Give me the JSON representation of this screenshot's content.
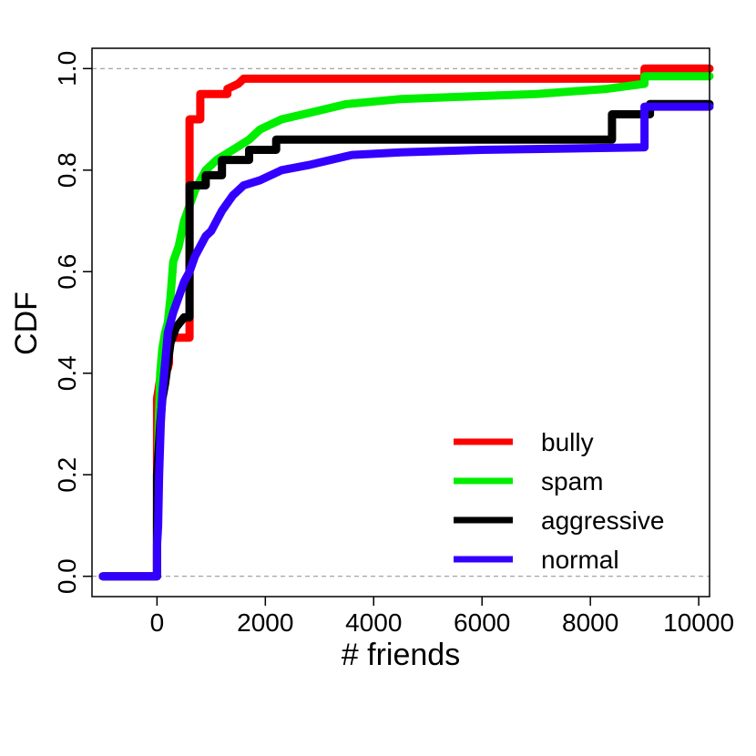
{
  "chart_data": {
    "type": "line",
    "xlabel": "# friends",
    "ylabel": "CDF",
    "xlim": [
      -1200,
      10200
    ],
    "ylim": [
      -0.04,
      1.04
    ],
    "x_ticks": [
      0,
      2000,
      4000,
      6000,
      8000,
      10000
    ],
    "x_tick_labels": [
      "0",
      "2000",
      "4000",
      "6000",
      "8000",
      "10000"
    ],
    "y_ticks": [
      0.0,
      0.2,
      0.4,
      0.6,
      0.8,
      1.0
    ],
    "y_tick_labels": [
      "0.0",
      "0.2",
      "0.4",
      "0.6",
      "0.8",
      "1.0"
    ],
    "reference_lines_y": [
      0.0,
      1.0
    ],
    "legend_position": "bottom-right",
    "series": [
      {
        "name": "bully",
        "color": "#ff0000",
        "points": [
          [
            -1000,
            0
          ],
          [
            0,
            0
          ],
          [
            0,
            0.35
          ],
          [
            30,
            0.37
          ],
          [
            60,
            0.39
          ],
          [
            100,
            0.4
          ],
          [
            150,
            0.41
          ],
          [
            200,
            0.41
          ],
          [
            220,
            0.42
          ],
          [
            220,
            0.47
          ],
          [
            600,
            0.47
          ],
          [
            600,
            0.9
          ],
          [
            800,
            0.9
          ],
          [
            800,
            0.95
          ],
          [
            1300,
            0.95
          ],
          [
            1300,
            0.96
          ],
          [
            1500,
            0.97
          ],
          [
            1600,
            0.98
          ],
          [
            9000,
            0.98
          ],
          [
            9000,
            1.0
          ],
          [
            10200,
            1.0
          ]
        ]
      },
      {
        "name": "spam",
        "color": "#00ee00",
        "points": [
          [
            -1000,
            0
          ],
          [
            0,
            0
          ],
          [
            0,
            0.12
          ],
          [
            30,
            0.3
          ],
          [
            60,
            0.4
          ],
          [
            100,
            0.45
          ],
          [
            150,
            0.48
          ],
          [
            200,
            0.5
          ],
          [
            250,
            0.55
          ],
          [
            300,
            0.62
          ],
          [
            400,
            0.65
          ],
          [
            500,
            0.7
          ],
          [
            700,
            0.76
          ],
          [
            900,
            0.8
          ],
          [
            1100,
            0.82
          ],
          [
            1400,
            0.84
          ],
          [
            1700,
            0.86
          ],
          [
            1900,
            0.88
          ],
          [
            2100,
            0.89
          ],
          [
            2300,
            0.9
          ],
          [
            2700,
            0.91
          ],
          [
            3100,
            0.92
          ],
          [
            3500,
            0.93
          ],
          [
            4500,
            0.94
          ],
          [
            7000,
            0.95
          ],
          [
            8300,
            0.96
          ],
          [
            9000,
            0.97
          ],
          [
            9000,
            0.985
          ],
          [
            10200,
            0.985
          ]
        ]
      },
      {
        "name": "aggressive",
        "color": "#000000",
        "points": [
          [
            -1000,
            0
          ],
          [
            0,
            0
          ],
          [
            0,
            0.2
          ],
          [
            30,
            0.25
          ],
          [
            60,
            0.3
          ],
          [
            100,
            0.35
          ],
          [
            150,
            0.38
          ],
          [
            200,
            0.42
          ],
          [
            250,
            0.46
          ],
          [
            350,
            0.49
          ],
          [
            500,
            0.51
          ],
          [
            600,
            0.51
          ],
          [
            600,
            0.77
          ],
          [
            900,
            0.77
          ],
          [
            900,
            0.79
          ],
          [
            1200,
            0.79
          ],
          [
            1200,
            0.82
          ],
          [
            1700,
            0.82
          ],
          [
            1700,
            0.84
          ],
          [
            2200,
            0.84
          ],
          [
            2200,
            0.86
          ],
          [
            8400,
            0.86
          ],
          [
            8400,
            0.91
          ],
          [
            9100,
            0.91
          ],
          [
            9100,
            0.93
          ],
          [
            10200,
            0.93
          ]
        ]
      },
      {
        "name": "normal",
        "color": "#3300ff",
        "points": [
          [
            -1000,
            0
          ],
          [
            0,
            0
          ],
          [
            0,
            0.06
          ],
          [
            20,
            0.1
          ],
          [
            40,
            0.2
          ],
          [
            70,
            0.3
          ],
          [
            100,
            0.36
          ],
          [
            150,
            0.42
          ],
          [
            200,
            0.48
          ],
          [
            300,
            0.52
          ],
          [
            400,
            0.55
          ],
          [
            500,
            0.58
          ],
          [
            600,
            0.6
          ],
          [
            700,
            0.63
          ],
          [
            800,
            0.65
          ],
          [
            900,
            0.67
          ],
          [
            1000,
            0.68
          ],
          [
            1200,
            0.72
          ],
          [
            1400,
            0.75
          ],
          [
            1600,
            0.77
          ],
          [
            1900,
            0.78
          ],
          [
            2300,
            0.8
          ],
          [
            2800,
            0.81
          ],
          [
            3200,
            0.82
          ],
          [
            3600,
            0.83
          ],
          [
            4500,
            0.835
          ],
          [
            6000,
            0.84
          ],
          [
            9000,
            0.845
          ],
          [
            9000,
            0.925
          ],
          [
            10200,
            0.925
          ]
        ]
      }
    ]
  }
}
